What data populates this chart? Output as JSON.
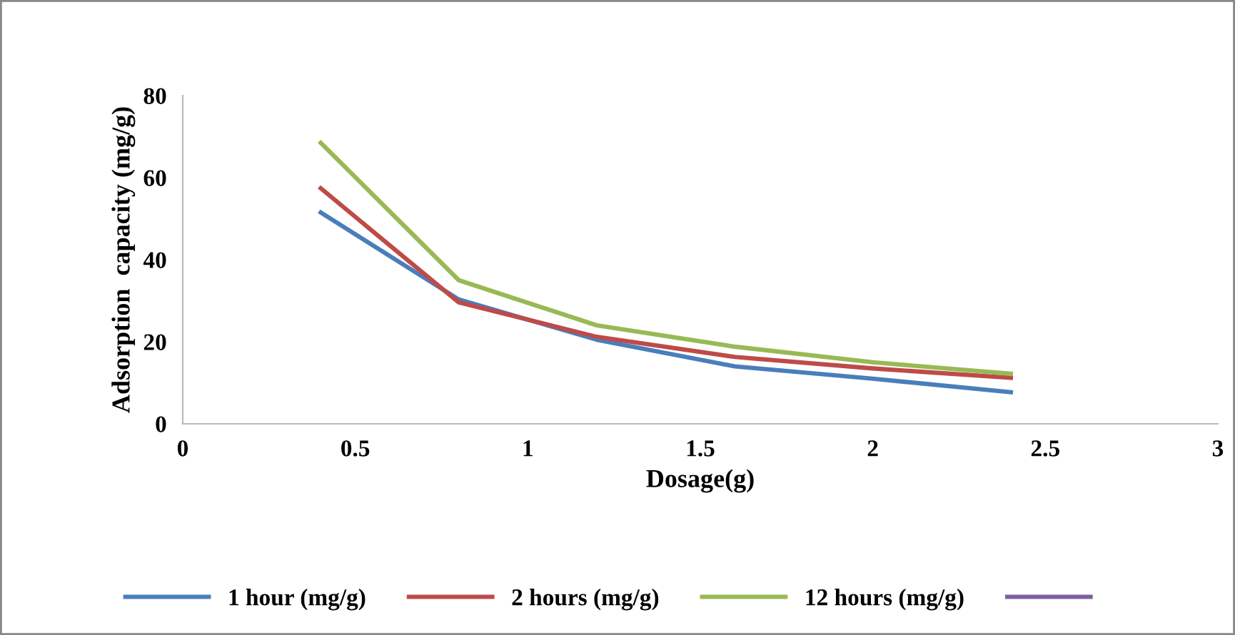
{
  "chart_data": {
    "type": "line",
    "xlabel": "Dosage(g)",
    "ylabel": "Adsorption  capacity (mg/g)",
    "x": [
      0.4,
      0.8,
      1.2,
      1.6,
      2.0,
      2.4
    ],
    "series": [
      {
        "name": "1 hour (mg/g)",
        "color": "#4a7ebb",
        "values": [
          51.5,
          30.3,
          20.5,
          14,
          11,
          7.7
        ]
      },
      {
        "name": "2 hours (mg/g)",
        "color": "#be4b48",
        "values": [
          57.4,
          29.6,
          21.2,
          16.3,
          13.5,
          11.2
        ]
      },
      {
        "name": "12 hours (mg/g)",
        "color": "#98b954",
        "values": [
          68.5,
          35,
          24,
          18.8,
          15,
          12.2
        ]
      },
      {
        "color": "#7d60a0",
        "values": [
          null,
          null,
          null,
          null,
          null,
          null
        ]
      }
    ],
    "xlim": [
      0,
      3
    ],
    "xticks": [
      0,
      0.5,
      1,
      1.5,
      2,
      2.5,
      3
    ],
    "ylim": [
      0,
      80
    ],
    "yticks": [
      0,
      20,
      40,
      60,
      80
    ],
    "grid": false,
    "legend": "bottom",
    "marker": "none",
    "line_style": "solid"
  }
}
